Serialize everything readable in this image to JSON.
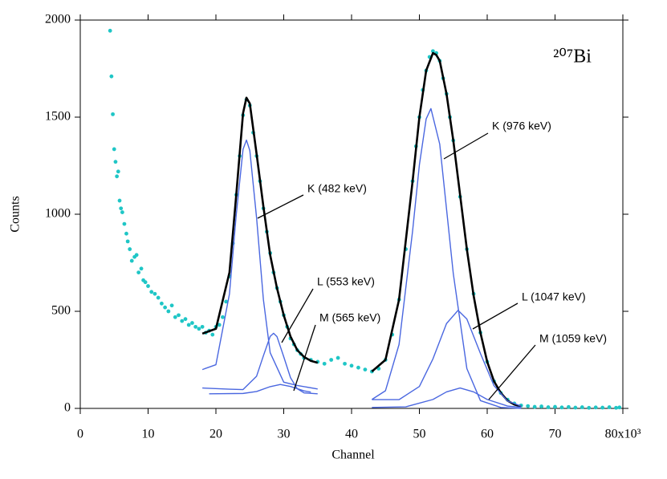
{
  "chart_data": {
    "type": "scatter",
    "title": "²⁰⁷Bi",
    "x_label": "Channel",
    "y_label": "Counts",
    "xlim": [
      0,
      80
    ],
    "ylim": [
      0,
      2000
    ],
    "xticks": [
      0,
      10,
      20,
      30,
      40,
      50,
      60,
      70,
      {
        "value": 80,
        "label": "80x10³"
      }
    ],
    "yticks": [
      0,
      500,
      1000,
      1500,
      2000
    ],
    "series": [
      {
        "type": "scatter",
        "color": "#1fc6c6",
        "x": [
          4.4,
          4.6,
          4.8,
          5.0,
          5.2,
          5.4,
          5.6,
          5.8,
          6.0,
          6.2,
          6.5,
          6.8,
          7.0,
          7.3,
          7.6,
          8.0,
          8.3,
          8.6,
          9.0,
          9.3,
          9.6,
          10.0,
          10.5,
          11.0,
          11.5,
          12.0,
          12.5,
          13.0,
          13.5,
          14.0,
          14.5,
          15.0,
          15.5,
          16.0,
          16.5,
          17.0,
          17.5,
          18.0,
          18.5,
          19.0,
          19.5,
          20.0,
          20.5,
          21.0,
          21.5,
          22.0,
          22.5,
          23.0,
          23.5,
          24.0,
          24.5,
          25.0,
          25.5,
          26.0,
          26.5,
          27.0,
          27.5,
          28.0,
          28.5,
          29.0,
          29.5,
          30.0,
          30.5,
          31.0,
          31.5,
          32.0,
          32.5,
          33.0,
          34,
          35,
          36,
          37,
          38,
          39,
          40,
          41,
          42,
          43,
          44,
          45,
          46,
          47,
          48,
          49,
          49.5,
          50,
          50.5,
          51,
          51.5,
          52,
          52.5,
          53,
          53.5,
          54,
          54.5,
          55,
          56,
          57,
          58,
          59,
          60,
          61,
          62,
          63,
          64,
          65,
          66,
          67,
          68,
          69,
          70,
          71,
          72,
          73,
          74,
          75,
          76,
          77,
          78,
          79,
          79.5
        ],
        "values": [
          1945,
          1710,
          1515,
          1335,
          1270,
          1195,
          1220,
          1070,
          1030,
          1010,
          950,
          900,
          860,
          820,
          760,
          780,
          790,
          700,
          720,
          660,
          650,
          630,
          600,
          590,
          570,
          540,
          520,
          500,
          530,
          470,
          480,
          450,
          460,
          430,
          440,
          420,
          410,
          420,
          390,
          400,
          380,
          420,
          430,
          470,
          550,
          680,
          850,
          1100,
          1300,
          1510,
          1590,
          1560,
          1420,
          1300,
          1170,
          1030,
          910,
          800,
          700,
          620,
          550,
          480,
          420,
          360,
          330,
          300,
          280,
          260,
          250,
          240,
          230,
          250,
          260,
          230,
          220,
          210,
          200,
          190,
          205,
          250,
          380,
          560,
          820,
          1170,
          1350,
          1500,
          1640,
          1740,
          1810,
          1840,
          1830,
          1790,
          1700,
          1620,
          1500,
          1380,
          1090,
          820,
          590,
          390,
          240,
          140,
          80,
          45,
          25,
          15,
          12,
          8,
          10,
          6,
          8,
          5,
          7,
          4,
          6,
          3,
          5,
          4,
          6,
          3,
          5
        ]
      },
      {
        "type": "line",
        "color": "#000000",
        "x": [
          18,
          20,
          22,
          23,
          24,
          24.5,
          25,
          26,
          27,
          28,
          29,
          30,
          31,
          32,
          33,
          34,
          35,
          39,
          43,
          45,
          47,
          49,
          50,
          51,
          52,
          52.5,
          53,
          54,
          55,
          56,
          57,
          58,
          59,
          60,
          61,
          62,
          63,
          64,
          65
        ],
        "values": [
          385,
          410,
          700,
          1100,
          1520,
          1600,
          1570,
          1310,
          1040,
          790,
          620,
          480,
          370,
          300,
          265,
          245,
          235,
          null,
          190,
          250,
          560,
          1170,
          1500,
          1740,
          1830,
          1820,
          1790,
          1620,
          1380,
          1100,
          820,
          580,
          390,
          240,
          140,
          80,
          40,
          20,
          10
        ]
      },
      {
        "type": "line",
        "color": "#4a67e0",
        "name": "K (482 keV)",
        "x": [
          18,
          20,
          22,
          23,
          24,
          24.5,
          25,
          26,
          27,
          28,
          30,
          32,
          35
        ],
        "values": [
          200,
          225,
          590,
          998,
          1334,
          1382,
          1328,
          980,
          561,
          287,
          135,
          118,
          100
        ]
      },
      {
        "type": "line",
        "color": "#4a67e0",
        "name": "L (553 keV)",
        "x": [
          18,
          22,
          24,
          26,
          27,
          28,
          28.5,
          29,
          30,
          31,
          32,
          33,
          35
        ],
        "values": [
          105,
          99,
          97,
          166,
          271,
          371,
          387,
          370,
          266,
          158,
          101,
          80,
          75
        ]
      },
      {
        "type": "line",
        "color": "#4a67e0",
        "name": "M (565 keV)",
        "x": [
          19,
          24,
          26,
          28,
          29.5,
          31,
          33,
          34
        ],
        "values": [
          75,
          77,
          87,
          112,
          123,
          113,
          90,
          84
        ]
      },
      {
        "type": "line",
        "color": "#4a67e0",
        "name": "K (976 keV)",
        "x": [
          43,
          45,
          47,
          49,
          50,
          51,
          51.7,
          53,
          55,
          57,
          59,
          62,
          65
        ],
        "values": [
          46,
          91,
          329,
          914,
          1254,
          1491,
          1544,
          1361,
          694,
          205,
          40,
          5,
          0
        ]
      },
      {
        "type": "line",
        "color": "#4a67e0",
        "name": "L (1047 keV)",
        "x": [
          43,
          47,
          50,
          52,
          54,
          55.7,
          57,
          59,
          61,
          63,
          65
        ],
        "values": [
          45,
          45,
          113,
          255,
          437,
          505,
          460,
          283,
          117,
          38,
          12
        ]
      },
      {
        "type": "line",
        "color": "#4a67e0",
        "name": "M (1059 keV)",
        "x": [
          43,
          48,
          52,
          54,
          56,
          58,
          60,
          63,
          65
        ],
        "values": [
          5,
          8,
          46,
          85,
          105,
          85,
          46,
          12,
          6
        ]
      }
    ]
  }
}
